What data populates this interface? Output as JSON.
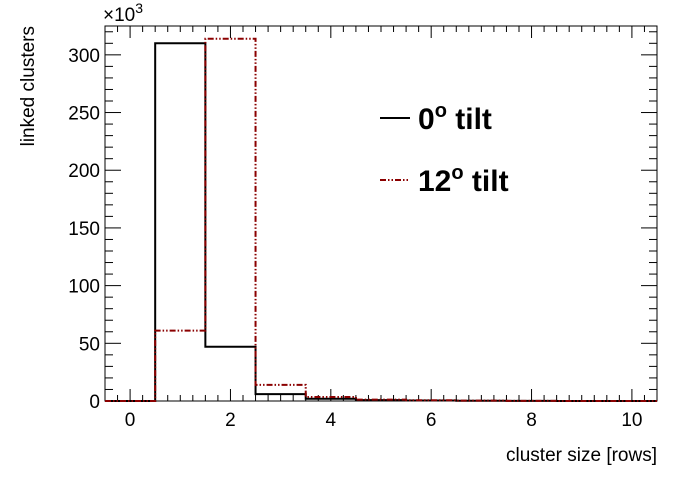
{
  "chart_data": {
    "type": "histogram",
    "title": "",
    "xlabel": "cluster size [rows]",
    "ylabel": "linked clusters",
    "y_multiplier": "×10",
    "y_multiplier_exp": "3",
    "xlim": [
      -0.5,
      10.5
    ],
    "ylim": [
      0,
      325
    ],
    "x_ticks": [
      0,
      2,
      4,
      6,
      8,
      10
    ],
    "y_ticks": [
      0,
      50,
      100,
      150,
      200,
      250,
      300
    ],
    "grid": false,
    "legend_position": "top-right",
    "series": [
      {
        "name_prefix": "0",
        "name_sup": "o",
        "name_suffix": " tilt",
        "color": "#000000",
        "line_style": "solid",
        "bins": [
          0,
          1,
          2,
          3,
          4,
          5,
          6,
          7,
          8,
          9,
          10
        ],
        "values": [
          0,
          310,
          47,
          6,
          2,
          0.8,
          0.4,
          0.2,
          0.1,
          0.05,
          0
        ]
      },
      {
        "name_prefix": "12",
        "name_sup": "o",
        "name_suffix": " tilt",
        "color": "#8b0000",
        "line_style": "dash-dot-dot",
        "bins": [
          0,
          1,
          2,
          3,
          4,
          5,
          6,
          7,
          8,
          9,
          10
        ],
        "values": [
          0,
          61,
          314,
          14,
          3.5,
          1.2,
          0.6,
          0.3,
          0.1,
          0.05,
          0
        ]
      }
    ]
  }
}
